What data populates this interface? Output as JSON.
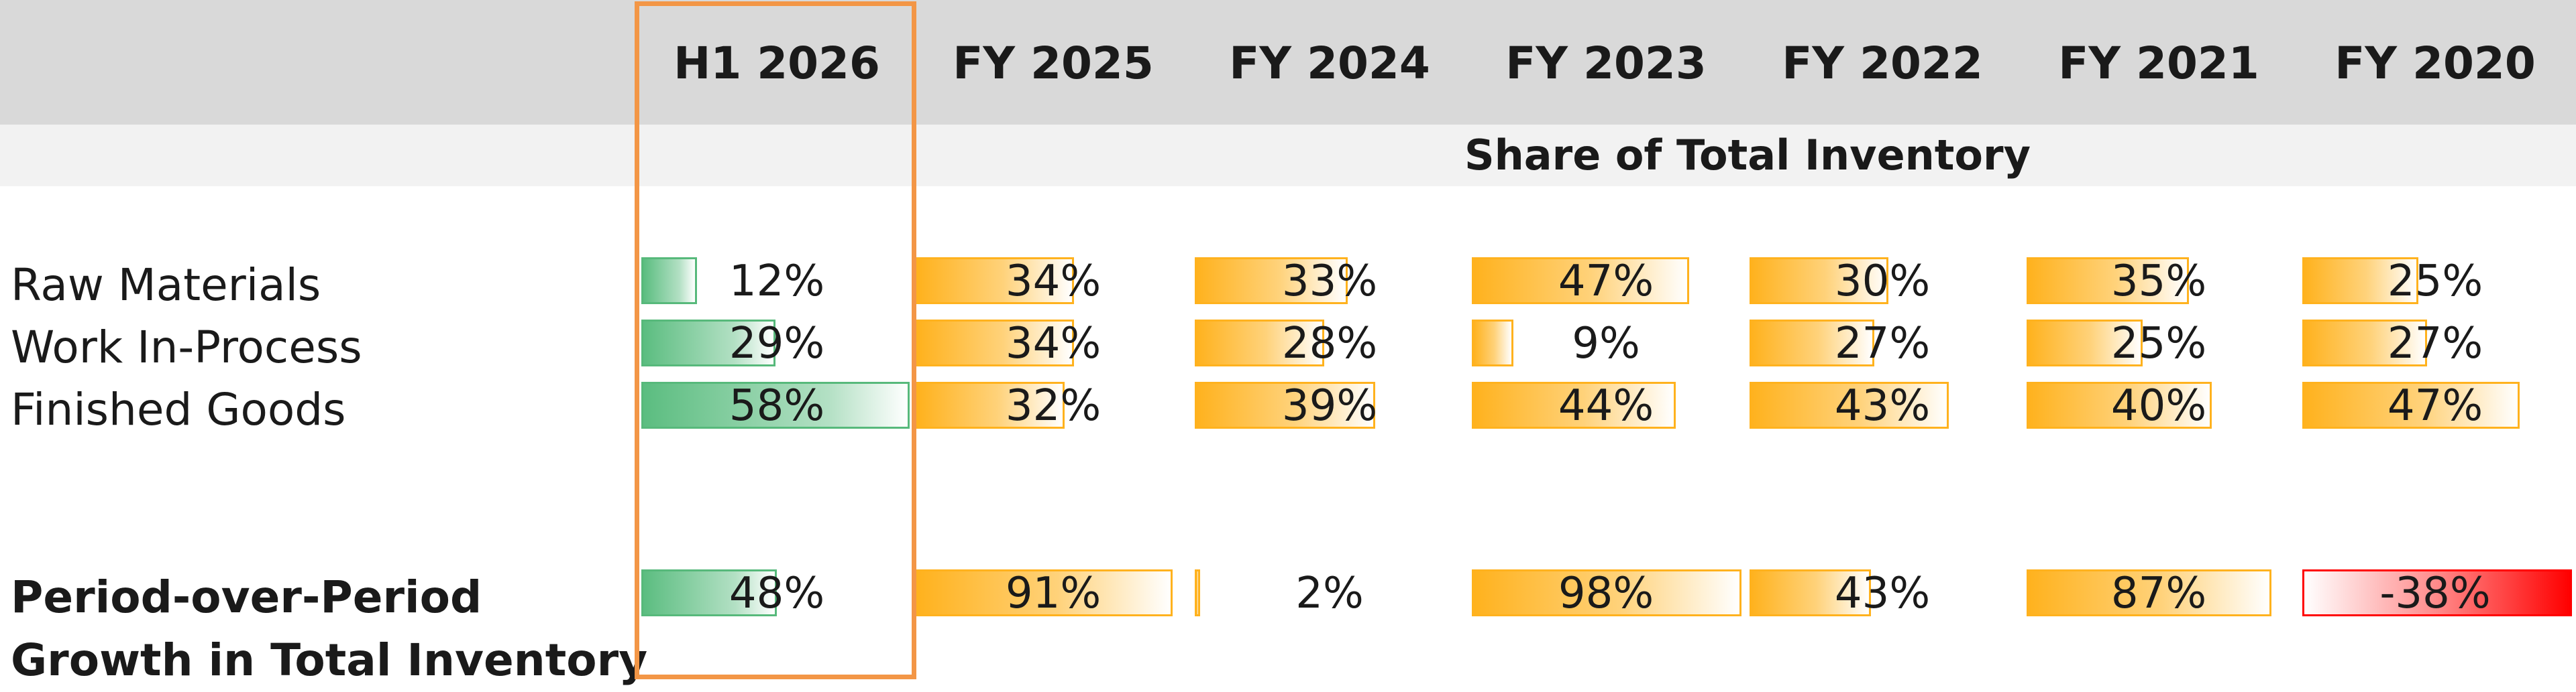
{
  "colors": {
    "positive_bar": "#5bbd80",
    "share_bar": "#ffb21e",
    "negative_bar": "#ff0000",
    "highlight": "#f39646"
  },
  "columns": [
    "H1 2026",
    "FY 2025",
    "FY 2024",
    "FY 2023",
    "FY 2022",
    "FY 2021",
    "FY 2020"
  ],
  "section_title": "Share of Total Inventory",
  "share_rows": [
    {
      "label": "Raw Materials",
      "values": [
        "12%",
        "34%",
        "33%",
        "47%",
        "30%",
        "35%",
        "25%"
      ],
      "fractions": [
        0.12,
        0.34,
        0.33,
        0.47,
        0.3,
        0.35,
        0.25
      ]
    },
    {
      "label": "Work In-Process",
      "values": [
        "29%",
        "34%",
        "28%",
        "9%",
        "27%",
        "25%",
        "27%"
      ],
      "fractions": [
        0.29,
        0.34,
        0.28,
        0.09,
        0.27,
        0.25,
        0.27
      ]
    },
    {
      "label": "Finished Goods",
      "values": [
        "58%",
        "32%",
        "39%",
        "44%",
        "43%",
        "40%",
        "47%"
      ],
      "fractions": [
        0.58,
        0.32,
        0.39,
        0.44,
        0.43,
        0.4,
        0.47
      ]
    }
  ],
  "growth_row": {
    "label_line1": "Period-over-Period",
    "label_line2": "Growth in Total Inventory",
    "values": [
      "48%",
      "91%",
      "2%",
      "98%",
      "43%",
      "87%",
      "-38%"
    ],
    "fractions": [
      0.48,
      0.91,
      0.02,
      0.98,
      0.43,
      0.87,
      -0.38
    ]
  }
}
